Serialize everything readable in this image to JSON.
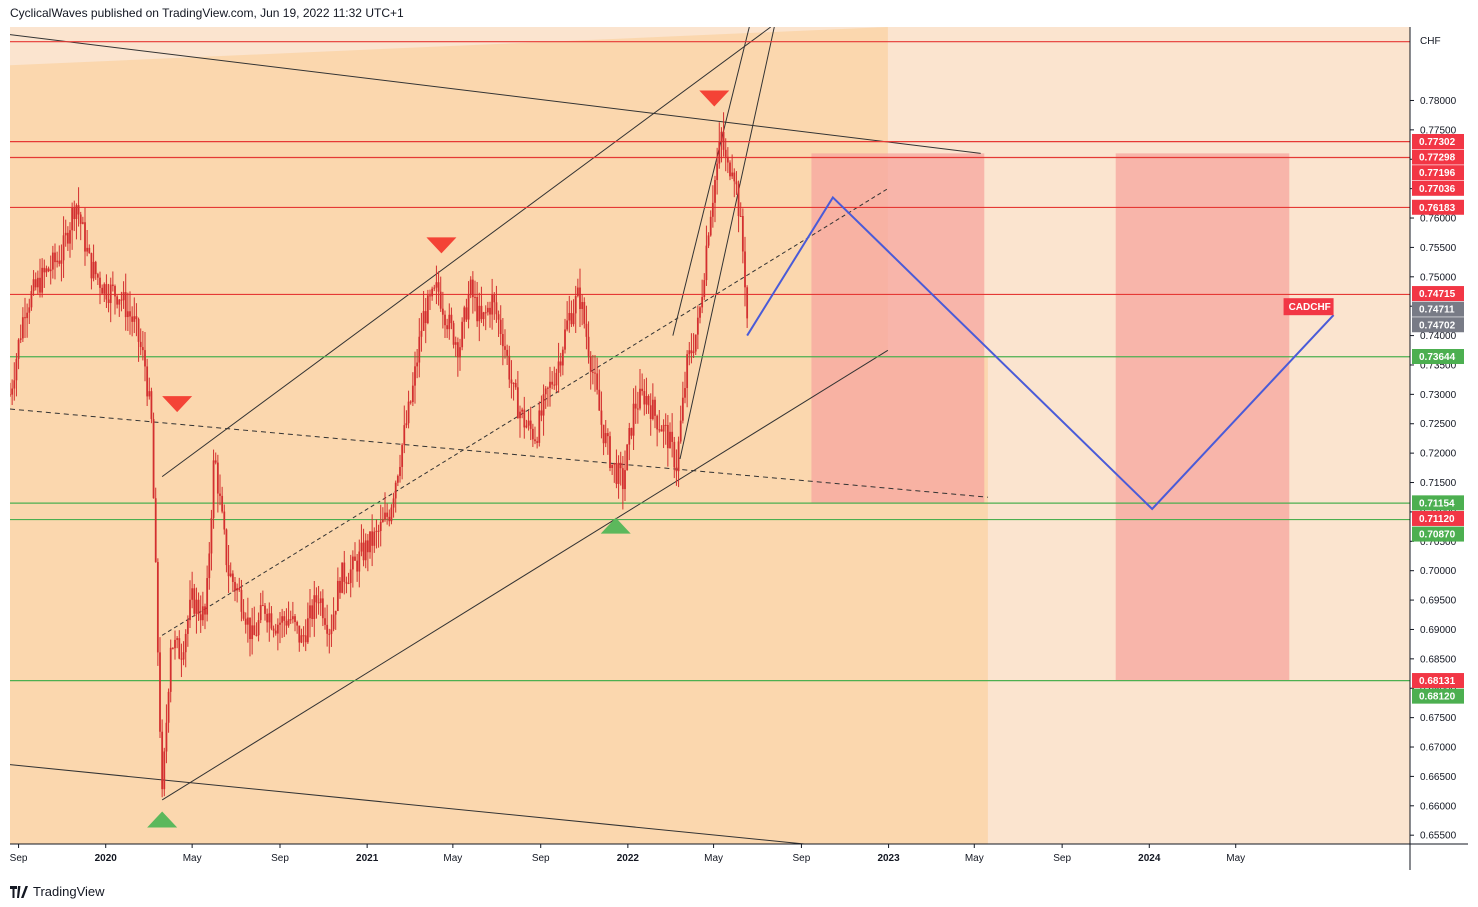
{
  "header": {
    "publisher_line": "CyclicalWaves published on TradingView.com, Jun 19, 2022 11:32 UTC+1"
  },
  "footer": {
    "brand": "TradingView"
  },
  "colors": {
    "background": "#fbe4cf",
    "channel_fill": "#fad5a8",
    "red_zone": "#f8a9a0",
    "candle": "#d32f2f",
    "red_line": "#e53935",
    "green_line": "#4caf50",
    "projection": "#4a5bd8",
    "trend_line": "#333333",
    "badge_red": "#f23645",
    "badge_green": "#4caf50",
    "badge_gray": "#787b86"
  },
  "chart_data": {
    "type": "candlestick",
    "symbol": "CADCHF",
    "currency": "CHF",
    "ylim": [
      0.6535,
      0.7925
    ],
    "y_ticks": [
      "0.78000",
      "0.77500",
      "0.77000",
      "0.76500",
      "0.76000",
      "0.75500",
      "0.75000",
      "0.74500",
      "0.74000",
      "0.73500",
      "0.73000",
      "0.72500",
      "0.72000",
      "0.71500",
      "0.71000",
      "0.70500",
      "0.70000",
      "0.69500",
      "0.69000",
      "0.68500",
      "0.68000",
      "0.67500",
      "0.67000",
      "0.66500",
      "0.66000",
      "0.65500"
    ],
    "x_ticks": [
      {
        "label": "Sep",
        "date": "2019-09-01"
      },
      {
        "label": "2020",
        "date": "2020-01-01",
        "bold": true
      },
      {
        "label": "May",
        "date": "2020-05-01"
      },
      {
        "label": "Sep",
        "date": "2020-09-01"
      },
      {
        "label": "2021",
        "date": "2021-01-01",
        "bold": true
      },
      {
        "label": "May",
        "date": "2021-05-01"
      },
      {
        "label": "Sep",
        "date": "2021-09-01"
      },
      {
        "label": "2022",
        "date": "2022-01-01",
        "bold": true
      },
      {
        "label": "May",
        "date": "2022-05-01"
      },
      {
        "label": "Sep",
        "date": "2022-09-01"
      },
      {
        "label": "2023",
        "date": "2023-01-01",
        "bold": true
      },
      {
        "label": "May",
        "date": "2023-05-01"
      },
      {
        "label": "Sep",
        "date": "2023-09-01"
      },
      {
        "label": "2024",
        "date": "2024-01-01",
        "bold": true
      },
      {
        "label": "May",
        "date": "2024-05-01"
      }
    ],
    "price_path": [
      [
        "2019-08-20",
        0.73
      ],
      [
        "2019-09-10",
        0.745
      ],
      [
        "2019-10-05",
        0.75
      ],
      [
        "2019-11-01",
        0.754
      ],
      [
        "2019-11-20",
        0.763
      ],
      [
        "2019-12-10",
        0.752
      ],
      [
        "2019-12-31",
        0.748
      ],
      [
        "2020-01-20",
        0.747
      ],
      [
        "2020-02-10",
        0.742
      ],
      [
        "2020-02-25",
        0.735
      ],
      [
        "2020-03-05",
        0.725
      ],
      [
        "2020-03-20",
        0.661
      ],
      [
        "2020-04-01",
        0.688
      ],
      [
        "2020-04-15",
        0.686
      ],
      [
        "2020-05-01",
        0.695
      ],
      [
        "2020-05-20",
        0.692
      ],
      [
        "2020-06-01",
        0.72
      ],
      [
        "2020-06-20",
        0.7
      ],
      [
        "2020-07-10",
        0.695
      ],
      [
        "2020-07-25",
        0.688
      ],
      [
        "2020-08-10",
        0.694
      ],
      [
        "2020-08-25",
        0.691
      ],
      [
        "2020-09-15",
        0.692
      ],
      [
        "2020-10-01",
        0.688
      ],
      [
        "2020-10-25",
        0.696
      ],
      [
        "2020-11-10",
        0.69
      ],
      [
        "2020-11-25",
        0.699
      ],
      [
        "2020-12-10",
        0.7
      ],
      [
        "2020-12-31",
        0.704
      ],
      [
        "2021-01-15",
        0.706
      ],
      [
        "2021-02-01",
        0.71
      ],
      [
        "2021-02-20",
        0.722
      ],
      [
        "2021-03-05",
        0.73
      ],
      [
        "2021-03-20",
        0.743
      ],
      [
        "2021-04-10",
        0.748
      ],
      [
        "2021-04-25",
        0.742
      ],
      [
        "2021-05-10",
        0.738
      ],
      [
        "2021-05-25",
        0.748
      ],
      [
        "2021-06-10",
        0.742
      ],
      [
        "2021-06-25",
        0.746
      ],
      [
        "2021-07-10",
        0.74
      ],
      [
        "2021-07-25",
        0.73
      ],
      [
        "2021-08-10",
        0.725
      ],
      [
        "2021-08-25",
        0.723
      ],
      [
        "2021-09-10",
        0.73
      ],
      [
        "2021-09-25",
        0.735
      ],
      [
        "2021-10-10",
        0.743
      ],
      [
        "2021-10-25",
        0.747
      ],
      [
        "2021-11-10",
        0.736
      ],
      [
        "2021-11-25",
        0.725
      ],
      [
        "2021-12-10",
        0.718
      ],
      [
        "2021-12-25",
        0.715
      ],
      [
        "2022-01-10",
        0.728
      ],
      [
        "2022-01-25",
        0.73
      ],
      [
        "2022-02-10",
        0.726
      ],
      [
        "2022-02-25",
        0.723
      ],
      [
        "2022-03-10",
        0.718
      ],
      [
        "2022-03-25",
        0.735
      ],
      [
        "2022-04-10",
        0.742
      ],
      [
        "2022-04-25",
        0.76
      ],
      [
        "2022-05-05",
        0.768
      ],
      [
        "2022-05-12",
        0.774
      ],
      [
        "2022-05-20",
        0.768
      ],
      [
        "2022-05-28",
        0.77
      ],
      [
        "2022-06-05",
        0.762
      ],
      [
        "2022-06-10",
        0.756
      ],
      [
        "2022-06-15",
        0.748
      ],
      [
        "2022-06-17",
        0.743
      ]
    ],
    "horizontal_levels": [
      {
        "price": 0.773,
        "style": "red"
      },
      {
        "price": 0.7703,
        "style": "red"
      },
      {
        "price": 0.7618,
        "style": "red"
      },
      {
        "price": 0.747,
        "style": "red"
      },
      {
        "price": 0.7364,
        "style": "green"
      },
      {
        "price": 0.7115,
        "style": "green"
      },
      {
        "price": 0.7087,
        "style": "green"
      },
      {
        "price": 0.6813,
        "style": "green"
      }
    ],
    "price_labels": [
      {
        "text": "0.77302",
        "price": 0.77302,
        "color": "red"
      },
      {
        "text": "0.77298",
        "price": 0.77298,
        "color": "red"
      },
      {
        "text": "0.77196",
        "price": 0.77196,
        "color": "red"
      },
      {
        "text": "0.77036",
        "price": 0.77036,
        "color": "red"
      },
      {
        "text": "0.76183",
        "price": 0.76183,
        "color": "red"
      },
      {
        "text": "0.74715",
        "price": 0.74715,
        "color": "red"
      },
      {
        "text": "0.74711",
        "price": 0.74711,
        "color": "gray"
      },
      {
        "text": "0.74702",
        "price": 0.74702,
        "color": "gray"
      },
      {
        "text": "0.73644",
        "price": 0.73644,
        "color": "green"
      },
      {
        "text": "0.71154",
        "price": 0.71154,
        "color": "green"
      },
      {
        "text": "0.71120",
        "price": 0.7112,
        "color": "red"
      },
      {
        "text": "0.70870",
        "price": 0.7087,
        "color": "green"
      },
      {
        "text": "0.68131",
        "price": 0.68131,
        "color": "red"
      },
      {
        "text": "0.68120",
        "price": 0.6812,
        "color": "green"
      }
    ],
    "projection_path": [
      [
        "2022-06-17",
        0.74
      ],
      [
        "2022-10-15",
        0.7635
      ],
      [
        "2024-01-05",
        0.7105
      ],
      [
        "2024-09-15",
        0.7435
      ]
    ],
    "symbol_label": {
      "text": "CADCHF",
      "date": "2024-09-01",
      "price": 0.745
    },
    "zones": [
      {
        "from": "2022-09-15",
        "to": "2023-05-15",
        "price_high": 0.771,
        "price_low": 0.7115
      },
      {
        "from": "2023-11-15",
        "to": "2024-07-15",
        "price_high": 0.771,
        "price_low": 0.6813
      }
    ],
    "markers": [
      {
        "date": "2022-05-02",
        "price": 0.78,
        "dir": "down",
        "color": "red"
      },
      {
        "date": "2021-04-15",
        "price": 0.755,
        "dir": "down",
        "color": "red"
      },
      {
        "date": "2020-04-10",
        "price": 0.728,
        "dir": "down",
        "color": "red"
      },
      {
        "date": "2020-03-20",
        "price": 0.658,
        "dir": "up",
        "color": "green"
      },
      {
        "date": "2021-12-15",
        "price": 0.708,
        "dir": "up",
        "color": "green"
      }
    ]
  }
}
